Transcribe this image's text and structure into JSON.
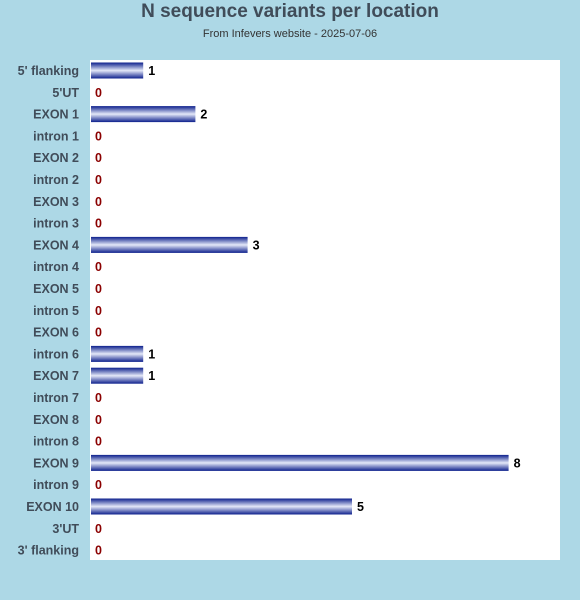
{
  "title": "N sequence variants per location",
  "subtitle": "From Infevers website - 2025-07-06",
  "colors": {
    "background": "#add8e6",
    "plot_background": "#ffffff",
    "bar_dark": "#0c1f8c",
    "bar_light": "#e4e8f8",
    "zero_label": "#8b0000",
    "value_label": "#000000",
    "category_label": "#404c59"
  },
  "chart_data": {
    "type": "bar",
    "orientation": "horizontal",
    "categories": [
      "5' flanking",
      "5'UT",
      "EXON 1",
      "intron 1",
      "EXON 2",
      "intron 2",
      "EXON 3",
      "intron 3",
      "EXON 4",
      "intron 4",
      "EXON 5",
      "intron 5",
      "EXON 6",
      "intron 6",
      "EXON 7",
      "intron 7",
      "EXON 8",
      "intron 8",
      "EXON 9",
      "intron 9",
      "EXON 10",
      "3'UT",
      "3' flanking"
    ],
    "values": [
      1,
      0,
      2,
      0,
      0,
      0,
      0,
      0,
      3,
      0,
      0,
      0,
      0,
      1,
      1,
      0,
      0,
      0,
      8,
      0,
      5,
      0,
      0
    ],
    "title": "N sequence variants per location",
    "subtitle": "From Infevers website - 2025-07-06",
    "xlim": [
      0,
      9
    ],
    "grid": false,
    "legend": "none"
  }
}
